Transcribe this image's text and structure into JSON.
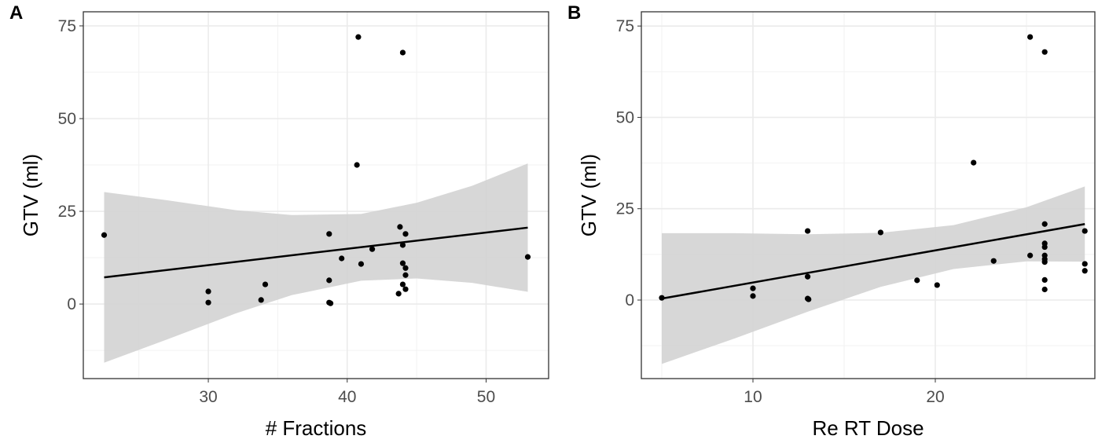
{
  "chart_data": [
    {
      "type": "scatter",
      "panel_label": "A",
      "xlabel": "# Fractions",
      "ylabel": "GTV (ml)",
      "xlim": [
        21.0,
        54.5
      ],
      "ylim": [
        -20.1,
        78.8
      ],
      "xticks": [
        30,
        40,
        50
      ],
      "yticks": [
        0,
        25,
        50,
        75
      ],
      "grid": true,
      "point_color": "#000000",
      "line_color": "#000000",
      "band_color": "#d3d3d3",
      "points": {
        "x": [
          22.5,
          30,
          30,
          34.1,
          33.8,
          38.7,
          38.7,
          38.7,
          38.8,
          40.8,
          40.7,
          39.6,
          41.0,
          41.8,
          44.0,
          43.8,
          44.2,
          44.0,
          44.0,
          44.2,
          44.2,
          44.0,
          43.7,
          44.2,
          53.0
        ],
        "y": [
          18.6,
          3.4,
          0.4,
          5.3,
          1.1,
          18.9,
          6.4,
          0.4,
          0.2,
          72.0,
          37.5,
          12.3,
          10.8,
          14.8,
          67.8,
          20.8,
          18.9,
          15.9,
          11.0,
          9.7,
          7.8,
          5.3,
          2.8,
          4.0,
          12.7
        ]
      },
      "fit": {
        "x": [
          22.5,
          53.0
        ],
        "y": [
          7.2,
          20.6
        ]
      },
      "band": {
        "x": [
          22.5,
          27,
          32,
          36,
          41,
          45,
          49,
          53
        ],
        "upper": [
          30.2,
          28.0,
          25.3,
          24.0,
          24.3,
          27.3,
          31.9,
          37.9
        ],
        "lower": [
          -15.8,
          -9.6,
          -2.5,
          2.4,
          6.3,
          6.9,
          5.7,
          3.3
        ]
      }
    },
    {
      "type": "scatter",
      "panel_label": "B",
      "xlabel": "Re RT Dose",
      "ylabel": "GTV (ml)",
      "xlim": [
        3.88,
        28.75
      ],
      "ylim": [
        -21.5,
        78.9
      ],
      "xticks": [
        10,
        20
      ],
      "yticks": [
        0,
        25,
        50,
        75
      ],
      "grid": true,
      "point_color": "#000000",
      "line_color": "#000000",
      "band_color": "#d3d3d3",
      "points": {
        "x": [
          5.0,
          10,
          10,
          13,
          13,
          13,
          13.05,
          17,
          19,
          20.1,
          22.1,
          23.2,
          25.2,
          25.2,
          26.0,
          26.0,
          26.0,
          26.0,
          26.0,
          26.0,
          26.0,
          26.0,
          26.0,
          28.2,
          28.2,
          28.2
        ],
        "y": [
          0.6,
          3.2,
          1.1,
          18.9,
          6.4,
          0.4,
          0.2,
          18.5,
          5.4,
          4.1,
          37.6,
          10.7,
          72.0,
          12.2,
          67.9,
          20.8,
          15.5,
          14.5,
          12.2,
          11.2,
          10.4,
          5.5,
          2.9,
          18.9,
          9.9,
          8.0
        ]
      },
      "fit": {
        "x": [
          5.0,
          28.2
        ],
        "y": [
          0.4,
          20.8
        ]
      },
      "band": {
        "x": [
          5,
          9,
          13,
          17,
          21,
          25,
          28.2
        ],
        "upper": [
          18.3,
          18.3,
          18.0,
          18.4,
          20.5,
          25.4,
          31.1
        ],
        "lower": [
          -17.5,
          -10.5,
          -3.2,
          3.6,
          8.5,
          10.6,
          10.5
        ]
      }
    }
  ]
}
